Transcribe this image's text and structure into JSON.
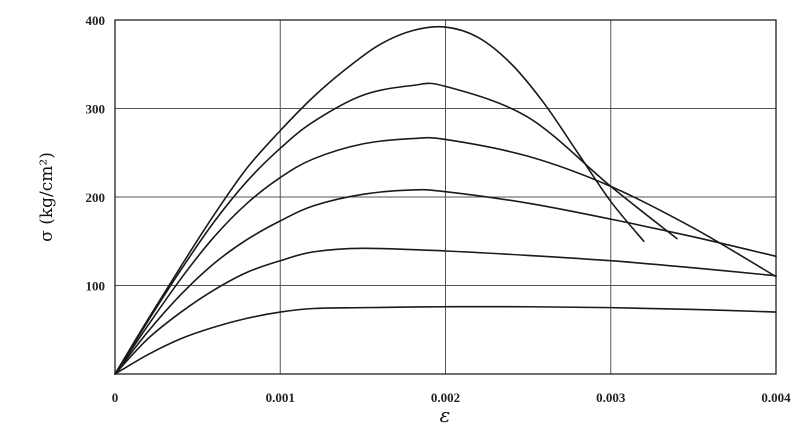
{
  "chart_data": {
    "type": "line",
    "xlabel": "ε",
    "ylabel": "σ (kg/cm²)",
    "xlim": [
      0,
      0.004
    ],
    "ylim": [
      0,
      400
    ],
    "x_ticks": [
      0,
      0.001,
      0.002,
      0.003,
      0.004
    ],
    "x_tick_labels": [
      "0",
      "0.001",
      "0.002",
      "0.003",
      "0.004"
    ],
    "y_ticks": [
      100,
      200,
      300,
      400
    ],
    "y_tick_labels": [
      "100",
      "200",
      "300",
      "400"
    ],
    "grid": true,
    "legend": "none",
    "series": [
      {
        "x": [
          0,
          0.0002,
          0.0004,
          0.0006,
          0.0008,
          0.001,
          0.0012,
          0.0015,
          0.002,
          0.0025,
          0.003,
          0.0035,
          0.004
        ],
        "y": [
          0,
          22,
          40,
          53,
          63,
          70,
          74,
          75,
          76,
          76,
          75,
          73,
          70
        ]
      },
      {
        "x": [
          0,
          0.0002,
          0.0004,
          0.0006,
          0.0008,
          0.001,
          0.0012,
          0.0015,
          0.002,
          0.0025,
          0.003,
          0.0035,
          0.004
        ],
        "y": [
          0,
          40,
          70,
          95,
          115,
          128,
          138,
          142,
          139,
          134,
          128,
          120,
          111
        ]
      },
      {
        "x": [
          0,
          0.0002,
          0.0004,
          0.0006,
          0.0008,
          0.001,
          0.0012,
          0.0015,
          0.0018,
          0.002,
          0.0025,
          0.003,
          0.0035,
          0.004
        ],
        "y": [
          0,
          48,
          90,
          125,
          152,
          173,
          190,
          203,
          208,
          206,
          193,
          175,
          155,
          133
        ]
      },
      {
        "x": [
          0,
          0.0002,
          0.0004,
          0.0006,
          0.0008,
          0.001,
          0.0012,
          0.0015,
          0.0018,
          0.002,
          0.0025,
          0.003,
          0.0035,
          0.004
        ],
        "y": [
          0,
          55,
          108,
          155,
          193,
          222,
          243,
          260,
          266,
          265,
          246,
          212,
          165,
          110
        ]
      },
      {
        "x": [
          0,
          0.0002,
          0.0004,
          0.0006,
          0.0008,
          0.001,
          0.0012,
          0.0015,
          0.0018,
          0.002,
          0.0025,
          0.003,
          0.0034
        ],
        "y": [
          0,
          60,
          118,
          172,
          218,
          255,
          285,
          315,
          326,
          325,
          290,
          212,
          153
        ]
      },
      {
        "x": [
          0,
          0.0002,
          0.0004,
          0.0006,
          0.0008,
          0.001,
          0.0012,
          0.0014,
          0.0016,
          0.0018,
          0.002,
          0.0022,
          0.0024,
          0.0026,
          0.0028,
          0.003,
          0.0032
        ],
        "y": [
          0,
          62,
          122,
          180,
          233,
          275,
          313,
          345,
          372,
          388,
          392,
          380,
          350,
          305,
          250,
          195,
          150
        ]
      }
    ]
  }
}
